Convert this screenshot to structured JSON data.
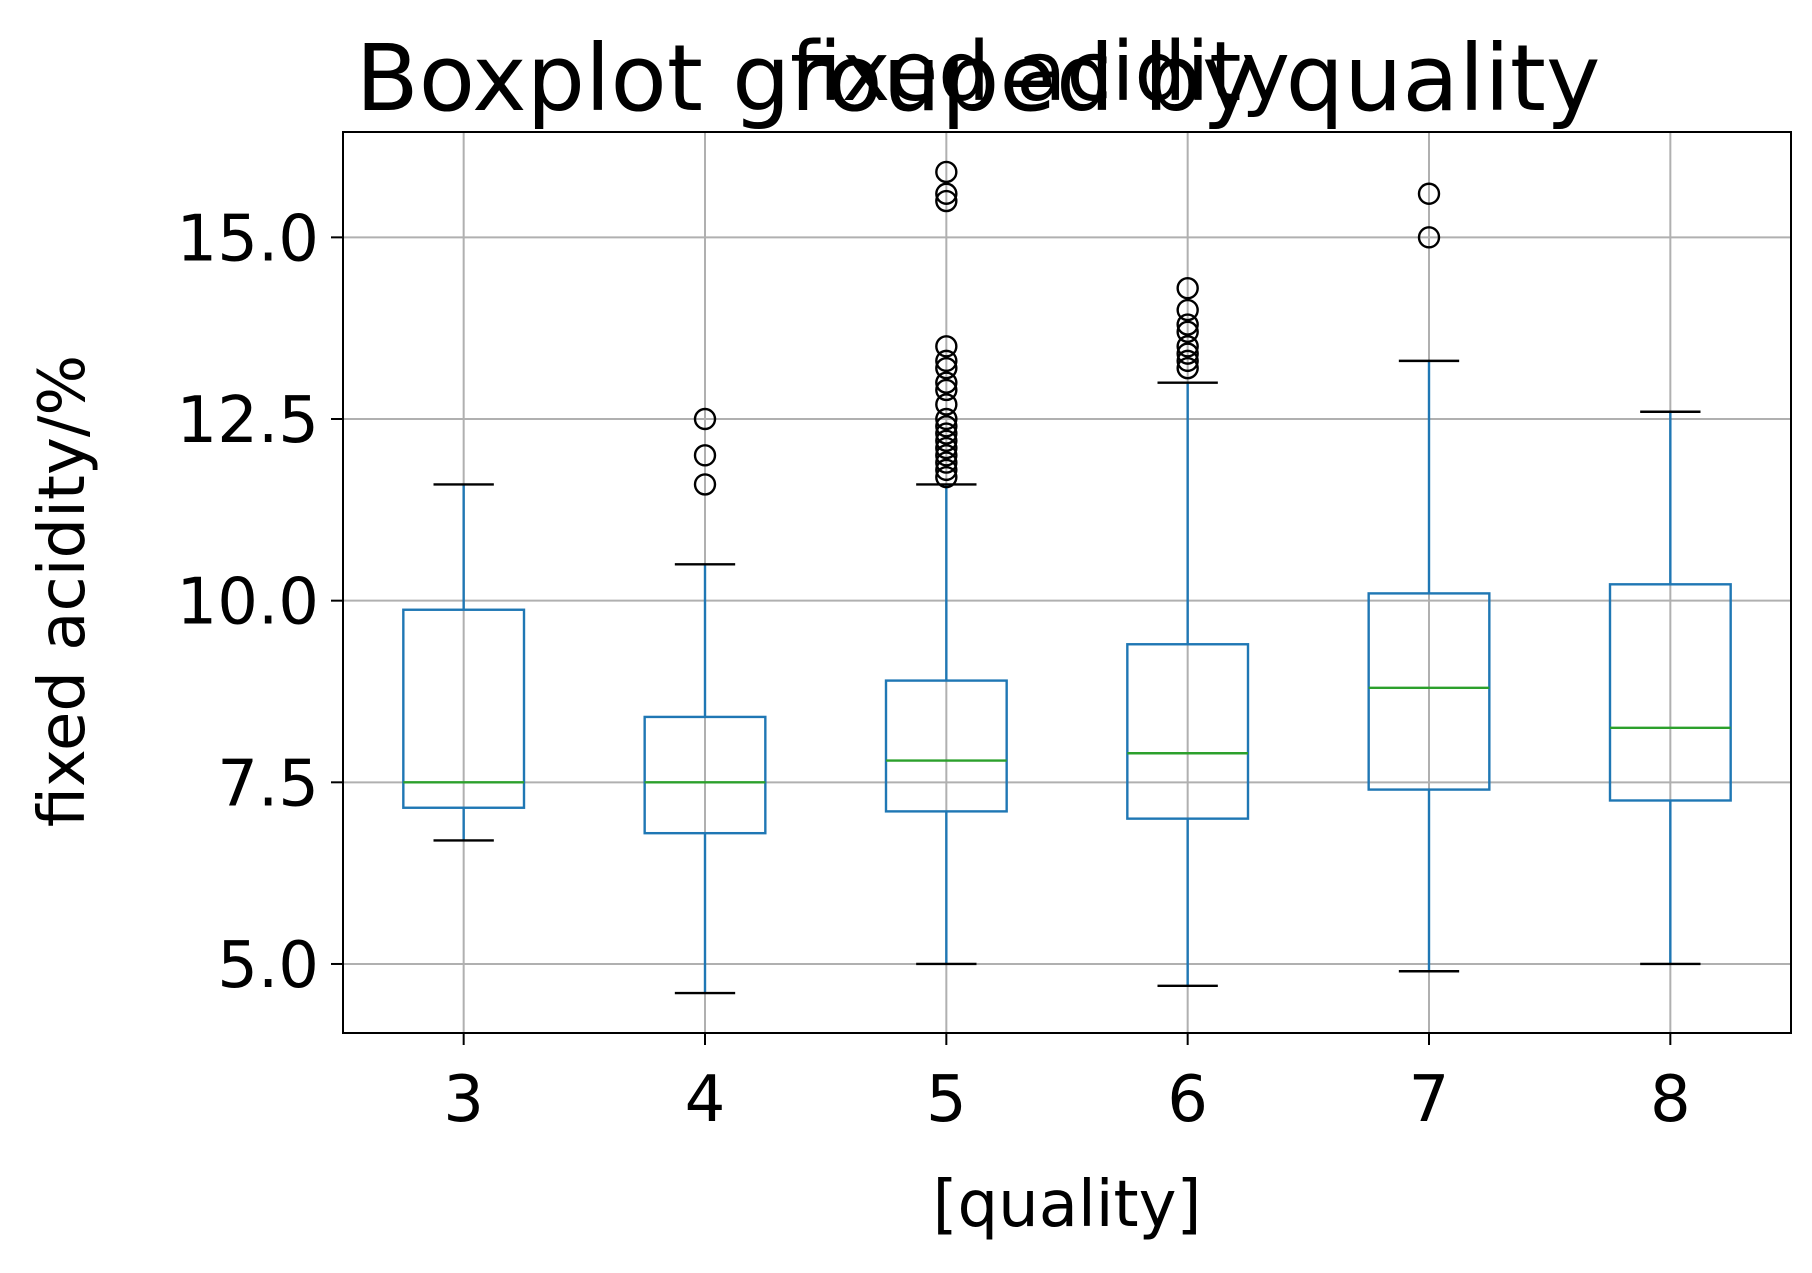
{
  "chart_data": {
    "type": "box",
    "suptitle": "Boxplot grouped by quality",
    "title": "fixed acidity",
    "xlabel": "[quality]",
    "ylabel": "fixed acidity/%",
    "categories": [
      "3",
      "4",
      "5",
      "6",
      "7",
      "8"
    ],
    "ylim": [
      4.05,
      16.45
    ],
    "yticks": [
      5.0,
      7.5,
      10.0,
      12.5,
      15.0
    ],
    "ytick_labels": [
      "5.0",
      "7.5",
      "10.0",
      "12.5",
      "15.0"
    ],
    "grid": true,
    "legend": "none",
    "colors": {
      "box": "#1f77b4",
      "median": "#2ca02c",
      "cap": "#000000",
      "flier": "#000000",
      "grid": "#b0b0b0"
    },
    "boxes": [
      {
        "category": "3",
        "whisker_low": 6.7,
        "q1": 7.15,
        "median": 7.5,
        "q3": 9.875,
        "whisker_high": 11.6,
        "fliers": []
      },
      {
        "category": "4",
        "whisker_low": 4.6,
        "q1": 6.8,
        "median": 7.5,
        "q3": 8.4,
        "whisker_high": 10.5,
        "fliers": [
          11.6,
          12.0,
          12.5
        ]
      },
      {
        "category": "5",
        "whisker_low": 5.0,
        "q1": 7.1,
        "median": 7.8,
        "q3": 8.9,
        "whisker_high": 11.6,
        "fliers": [
          11.7,
          11.8,
          11.9,
          12.0,
          12.1,
          12.2,
          12.3,
          12.4,
          12.5,
          12.7,
          12.9,
          13.0,
          13.2,
          13.3,
          13.5,
          15.5,
          15.6,
          15.9
        ]
      },
      {
        "category": "6",
        "whisker_low": 4.7,
        "q1": 7.0,
        "median": 7.9,
        "q3": 9.4,
        "whisker_high": 13.0,
        "fliers": [
          13.2,
          13.3,
          13.4,
          13.5,
          13.7,
          13.8,
          14.0,
          14.3
        ]
      },
      {
        "category": "7",
        "whisker_low": 4.9,
        "q1": 7.4,
        "median": 8.8,
        "q3": 10.1,
        "whisker_high": 13.3,
        "fliers": [
          15.0,
          15.6
        ]
      },
      {
        "category": "8",
        "whisker_low": 5.0,
        "q1": 7.25,
        "median": 8.25,
        "q3": 10.225,
        "whisker_high": 12.6,
        "fliers": []
      }
    ]
  }
}
